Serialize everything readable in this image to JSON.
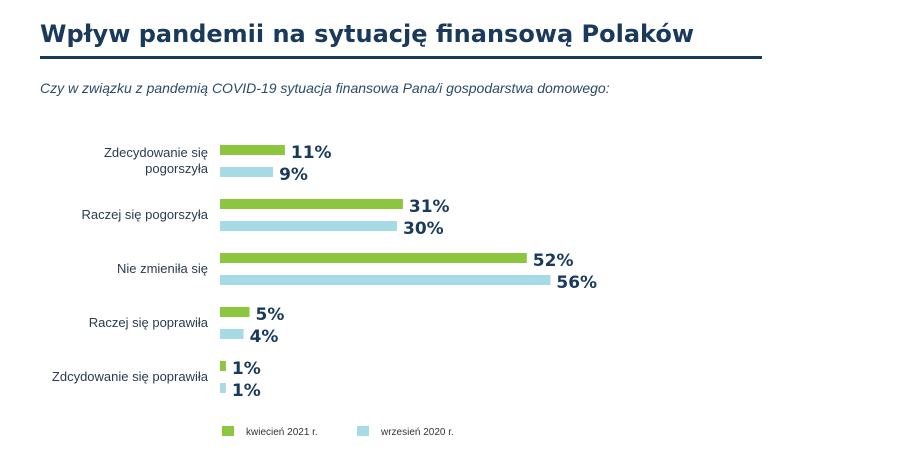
{
  "header": {
    "title": "Wpływ pandemii na sytuację finansową Polaków",
    "subtitle": "Czy w związku z pandemią COVID-19 sytuacja finansowa Pana/i gospodarstwa domowego:"
  },
  "colors": {
    "april_2021": "#8cc63f",
    "september_2020": "#a6dbe6",
    "title": "#1a3a5c"
  },
  "chart_data": {
    "type": "bar",
    "orientation": "horizontal",
    "categories": [
      [
        "Zdecydowanie się",
        "pogorszyła"
      ],
      [
        "Raczej się pogorszyła"
      ],
      [
        "Nie zmieniła się"
      ],
      [
        "Raczej się poprawiła"
      ],
      [
        "Zdcydowanie się poprawiła"
      ]
    ],
    "series": [
      {
        "name": "kwiecień 2021 r.",
        "values": [
          11,
          31,
          52,
          5,
          1
        ],
        "labels": [
          "11%",
          "31%",
          "52%",
          "5%",
          "1%"
        ]
      },
      {
        "name": "wrzesień 2020 r.",
        "values": [
          9,
          30,
          56,
          4,
          1
        ],
        "labels": [
          "9%",
          "30%",
          "56%",
          "4%",
          "1%"
        ]
      }
    ],
    "unit": "%",
    "legend_position": "bottom-left",
    "grid": false
  }
}
